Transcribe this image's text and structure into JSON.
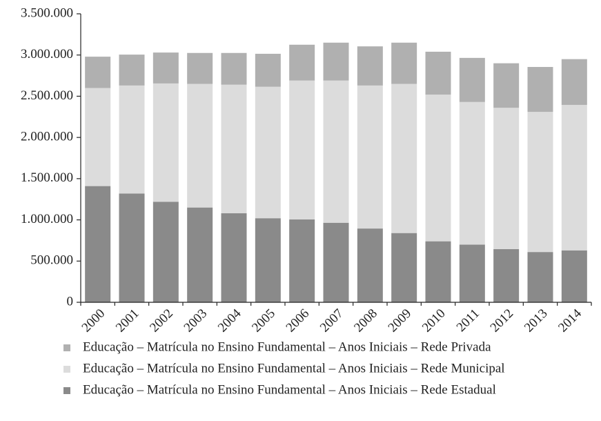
{
  "chart_data": {
    "type": "stacked-bar",
    "categories": [
      "2000",
      "2001",
      "2002",
      "2003",
      "2004",
      "2005",
      "2006",
      "2007",
      "2008",
      "2009",
      "2010",
      "2011",
      "2012",
      "2013",
      "2014"
    ],
    "series": [
      {
        "name": "Educação – Matrícula no Ensino Fundamental – Anos Iniciais – Rede Privada",
        "color": "#b0b0b0",
        "values": [
          380000,
          375000,
          375000,
          375000,
          385000,
          400000,
          435000,
          460000,
          475000,
          500000,
          520000,
          535000,
          540000,
          545000,
          555000
        ]
      },
      {
        "name": "Educação – Matrícula no Ensino Fundamental – Anos Iniciais – Rede Municipal",
        "color": "#dcdcdc",
        "values": [
          1190000,
          1310000,
          1435000,
          1500000,
          1560000,
          1595000,
          1685000,
          1725000,
          1735000,
          1810000,
          1780000,
          1730000,
          1715000,
          1700000,
          1765000
        ]
      },
      {
        "name": "Educação – Matrícula no Ensino Fundamental – Anos Iniciais – Rede Estadual",
        "color": "#8a8a8a",
        "values": [
          1410000,
          1320000,
          1220000,
          1150000,
          1080000,
          1020000,
          1005000,
          965000,
          895000,
          840000,
          740000,
          700000,
          645000,
          610000,
          630000
        ]
      }
    ],
    "ylim": [
      0,
      3500000
    ],
    "yticks": [
      0,
      {
        "value": 500000,
        "label": "500.000"
      },
      {
        "value": 1000000,
        "label": "1.000.000"
      },
      {
        "value": 1500000,
        "label": "1.500.000"
      },
      {
        "value": 2000000,
        "label": "2.000.000"
      },
      {
        "value": 2500000,
        "label": "2.500.000"
      },
      {
        "value": 3000000,
        "label": "3.000.000"
      },
      {
        "value": 3500000,
        "label": "3.500.000"
      }
    ]
  }
}
